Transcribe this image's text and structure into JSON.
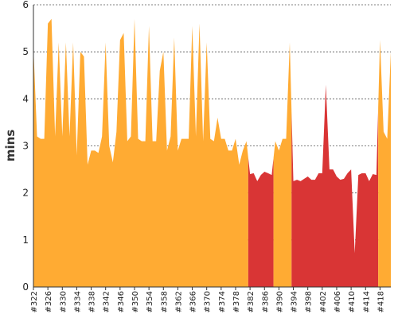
{
  "chart_data": {
    "type": "area",
    "ylabel": "mins",
    "ylim": [
      0,
      6
    ],
    "yticks": [
      "0",
      "1",
      "2",
      "3",
      "4",
      "5",
      "6"
    ],
    "grid": true,
    "x": [
      322,
      323,
      324,
      325,
      326,
      327,
      328,
      329,
      330,
      331,
      332,
      333,
      334,
      335,
      336,
      337,
      338,
      339,
      340,
      341,
      342,
      343,
      344,
      345,
      346,
      347,
      348,
      349,
      350,
      351,
      352,
      353,
      354,
      355,
      356,
      357,
      358,
      359,
      360,
      361,
      362,
      363,
      364,
      365,
      366,
      367,
      368,
      369,
      370,
      371,
      372,
      373,
      374,
      375,
      376,
      377,
      378,
      379,
      380,
      381,
      382,
      383,
      384,
      385,
      386,
      387,
      388,
      389,
      390,
      391,
      392,
      393,
      394,
      395,
      396,
      397,
      398,
      399,
      400,
      401,
      402,
      403,
      404,
      405,
      406,
      407,
      408,
      409,
      410,
      411,
      412,
      413,
      414,
      415,
      416,
      417,
      418,
      419,
      420,
      421
    ],
    "values": [
      5.1,
      3.2,
      3.15,
      3.15,
      5.6,
      5.7,
      3.2,
      5.2,
      3.2,
      5.2,
      3.2,
      5.2,
      2.8,
      5.0,
      4.9,
      2.6,
      2.9,
      2.9,
      2.85,
      3.2,
      5.2,
      3.0,
      2.65,
      3.3,
      5.25,
      5.4,
      3.1,
      3.2,
      5.7,
      3.15,
      3.1,
      3.1,
      5.55,
      3.1,
      3.1,
      4.6,
      5.0,
      2.9,
      3.2,
      5.3,
      2.9,
      3.15,
      3.15,
      3.15,
      5.55,
      3.2,
      5.6,
      3.1,
      5.2,
      3.15,
      3.1,
      3.6,
      3.15,
      3.15,
      2.9,
      2.9,
      3.15,
      2.6,
      2.9,
      3.1,
      2.4,
      2.42,
      2.25,
      2.38,
      2.45,
      2.42,
      2.38,
      3.1,
      2.9,
      3.15,
      3.15,
      5.2,
      2.25,
      2.28,
      2.25,
      2.3,
      2.35,
      2.28,
      2.28,
      2.42,
      2.42,
      4.3,
      2.5,
      2.5,
      2.35,
      2.28,
      2.3,
      2.42,
      2.5,
      0.72,
      2.38,
      2.42,
      2.42,
      2.25,
      2.4,
      2.38,
      5.25,
      3.3,
      3.15,
      5.0
    ],
    "status": [
      "ok",
      "ok",
      "ok",
      "ok",
      "ok",
      "ok",
      "ok",
      "ok",
      "ok",
      "ok",
      "ok",
      "ok",
      "ok",
      "ok",
      "ok",
      "ok",
      "ok",
      "ok",
      "ok",
      "ok",
      "ok",
      "ok",
      "ok",
      "ok",
      "ok",
      "ok",
      "ok",
      "ok",
      "ok",
      "ok",
      "ok",
      "ok",
      "ok",
      "ok",
      "ok",
      "ok",
      "ok",
      "ok",
      "ok",
      "ok",
      "ok",
      "ok",
      "ok",
      "ok",
      "ok",
      "ok",
      "ok",
      "ok",
      "ok",
      "ok",
      "ok",
      "ok",
      "ok",
      "ok",
      "ok",
      "ok",
      "ok",
      "ok",
      "ok",
      "ok",
      "fail",
      "fail",
      "fail",
      "fail",
      "fail",
      "fail",
      "fail",
      "ok",
      "ok",
      "ok",
      "ok",
      "ok",
      "fail",
      "fail",
      "fail",
      "fail",
      "fail",
      "fail",
      "fail",
      "fail",
      "fail",
      "fail",
      "fail",
      "fail",
      "fail",
      "fail",
      "fail",
      "fail",
      "fail",
      "fail",
      "fail",
      "fail",
      "fail",
      "fail",
      "fail",
      "fail",
      "ok",
      "ok",
      "ok",
      "ok"
    ],
    "xticks": [
      "#322",
      "#326",
      "#330",
      "#334",
      "#338",
      "#342",
      "#346",
      "#350",
      "#354",
      "#358",
      "#362",
      "#366",
      "#370",
      "#374",
      "#378",
      "#382",
      "#386",
      "#390",
      "#394",
      "#398",
      "#402",
      "#406",
      "#410",
      "#414",
      "#418"
    ],
    "colors": {
      "ok": "#ffab33",
      "fail": "#d93535"
    }
  }
}
